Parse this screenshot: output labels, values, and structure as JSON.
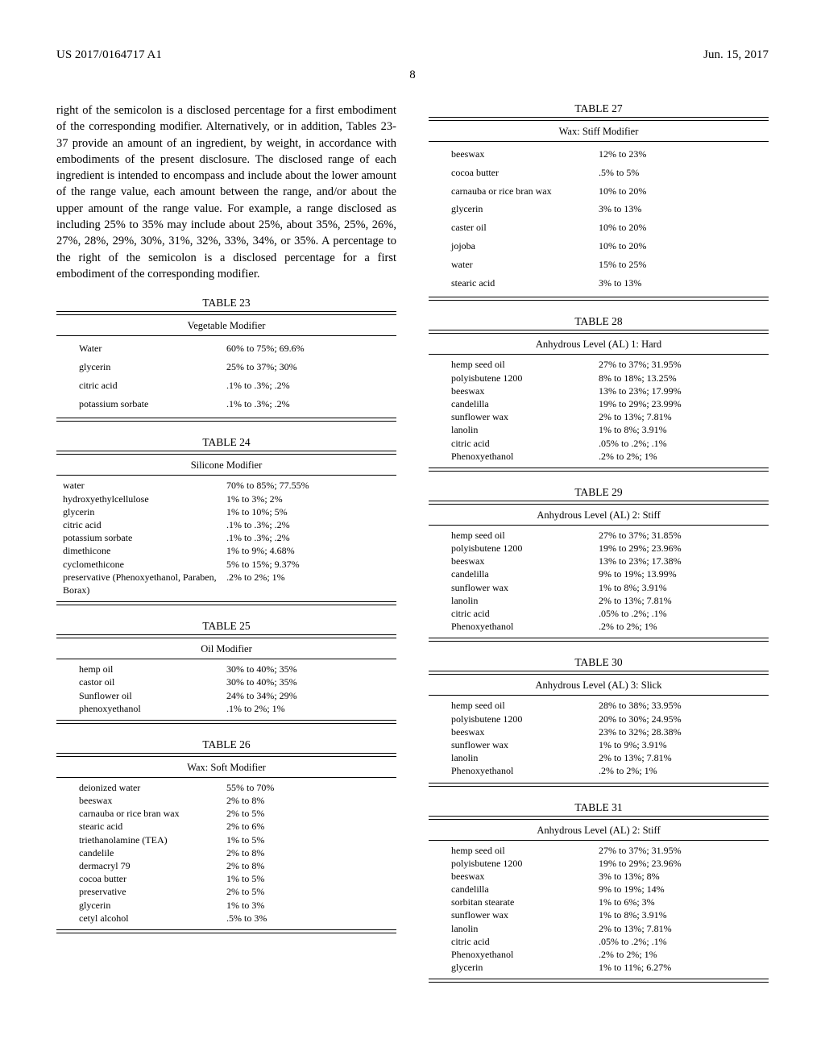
{
  "header": {
    "left": "US 2017/0164717 A1",
    "right": "Jun. 15, 2017"
  },
  "page_number": "8",
  "body_paragraph": "right of the semicolon is a disclosed percentage for a first embodiment of the corresponding modifier. Alternatively, or in addition, Tables 23-37 provide an amount of an ingredient, by weight, in accordance with embodiments of the present disclosure. The disclosed range of each ingredient is intended to encompass and include about the lower amount of the range value, each amount between the range, and/or about the upper amount of the range value. For example, a range disclosed as including 25% to 35% may include about 25%, about 35%, 25%, 26%, 27%, 28%, 29%, 30%, 31%, 32%, 33%, 34%, or 35%. A percentage to the right of the semicolon is a disclosed percentage for a first embodiment of the corresponding modifier.",
  "tables": {
    "t23": {
      "label": "TABLE 23",
      "title": "Vegetable Modifier",
      "spacious": true,
      "rows": [
        {
          "n": "Water",
          "v": "60% to 75%; 69.6%"
        },
        {
          "n": "glycerin",
          "v": "25% to 37%; 30%"
        },
        {
          "n": "citric acid",
          "v": ".1% to .3%; .2%"
        },
        {
          "n": "potassium sorbate",
          "v": ".1% to .3%; .2%"
        }
      ]
    },
    "t24": {
      "label": "TABLE 24",
      "title": "Silicone Modifier",
      "narrow": true,
      "rows": [
        {
          "n": "water",
          "v": "70% to 85%; 77.55%"
        },
        {
          "n": "hydroxyethylcellulose",
          "v": "1% to 3%; 2%"
        },
        {
          "n": "glycerin",
          "v": "1% to 10%; 5%"
        },
        {
          "n": "citric acid",
          "v": ".1% to .3%; .2%"
        },
        {
          "n": "potassium sorbate",
          "v": ".1% to .3%; .2%"
        },
        {
          "n": "dimethicone",
          "v": "1% to 9%; 4.68%"
        },
        {
          "n": "cyclomethicone",
          "v": "5% to 15%; 9.37%"
        },
        {
          "n": "preservative (Phenoxyethanol, Paraben, Borax)",
          "v": ".2% to 2%; 1%"
        }
      ]
    },
    "t25": {
      "label": "TABLE 25",
      "title": "Oil Modifier",
      "rows": [
        {
          "n": "hemp oil",
          "v": "30% to 40%; 35%"
        },
        {
          "n": "castor oil",
          "v": "30% to 40%; 35%"
        },
        {
          "n": "Sunflower oil",
          "v": "24% to 34%; 29%"
        },
        {
          "n": "phenoxyethanol",
          "v": ".1% to 2%; 1%"
        }
      ]
    },
    "t26": {
      "label": "TABLE 26",
      "title": "Wax: Soft Modifier",
      "rows": [
        {
          "n": "deionized water",
          "v": "55% to 70%"
        },
        {
          "n": "beeswax",
          "v": "2% to 8%"
        },
        {
          "n": "carnauba or rice bran wax",
          "v": "2% to 5%"
        },
        {
          "n": "stearic acid",
          "v": "2% to 6%"
        },
        {
          "n": "triethanolamine (TEA)",
          "v": "1% to 5%"
        },
        {
          "n": "candelile",
          "v": "2% to 8%"
        },
        {
          "n": "dermacryl 79",
          "v": "2% to 8%"
        },
        {
          "n": "cocoa butter",
          "v": "1% to 5%"
        },
        {
          "n": "preservative",
          "v": "2% to 5%"
        },
        {
          "n": "glycerin",
          "v": "1% to 3%"
        },
        {
          "n": "cetyl alcohol",
          "v": ".5% to 3%"
        }
      ]
    },
    "t27": {
      "label": "TABLE 27",
      "title": "Wax: Stiff Modifier",
      "spacious": true,
      "rows": [
        {
          "n": "beeswax",
          "v": "12% to 23%"
        },
        {
          "n": "cocoa butter",
          "v": ".5% to 5%"
        },
        {
          "n": "carnauba or rice bran wax",
          "v": "10% to 20%"
        },
        {
          "n": "glycerin",
          "v": "3% to 13%"
        },
        {
          "n": "caster oil",
          "v": "10% to 20%"
        },
        {
          "n": "jojoba",
          "v": "10% to 20%"
        },
        {
          "n": "water",
          "v": "15% to 25%"
        },
        {
          "n": "stearic acid",
          "v": "3% to 13%"
        }
      ]
    },
    "t28": {
      "label": "TABLE 28",
      "title": "Anhydrous Level (AL) 1: Hard",
      "rows": [
        {
          "n": "hemp seed oil",
          "v": "27% to 37%; 31.95%"
        },
        {
          "n": "polyisbutene 1200",
          "v": "8% to 18%; 13.25%"
        },
        {
          "n": "beeswax",
          "v": "13% to 23%; 17.99%"
        },
        {
          "n": "candelilla",
          "v": "19% to 29%; 23.99%"
        },
        {
          "n": "sunflower wax",
          "v": "2% to 13%; 7.81%"
        },
        {
          "n": "lanolin",
          "v": "1% to 8%; 3.91%"
        },
        {
          "n": "citric acid",
          "v": ".05% to .2%; .1%"
        },
        {
          "n": "Phenoxyethanol",
          "v": ".2% to 2%; 1%"
        }
      ]
    },
    "t29": {
      "label": "TABLE 29",
      "title": "Anhydrous Level (AL) 2: Stiff",
      "rows": [
        {
          "n": "hemp seed oil",
          "v": "27% to 37%; 31.85%"
        },
        {
          "n": "polyisbutene 1200",
          "v": "19% to 29%; 23.96%"
        },
        {
          "n": "beeswax",
          "v": "13% to 23%; 17.38%"
        },
        {
          "n": "candelilla",
          "v": "9% to 19%; 13.99%"
        },
        {
          "n": "sunflower wax",
          "v": "1% to 8%; 3.91%"
        },
        {
          "n": "lanolin",
          "v": "2% to 13%; 7.81%"
        },
        {
          "n": "citric acid",
          "v": ".05% to .2%; .1%"
        },
        {
          "n": "Phenoxyethanol",
          "v": ".2% to 2%; 1%"
        }
      ]
    },
    "t30": {
      "label": "TABLE 30",
      "title": "Anhydrous Level (AL) 3: Slick",
      "rows": [
        {
          "n": "hemp seed oil",
          "v": "28% to 38%; 33.95%"
        },
        {
          "n": "polyisbutene 1200",
          "v": "20% to 30%; 24.95%"
        },
        {
          "n": "beeswax",
          "v": "23% to 32%; 28.38%"
        },
        {
          "n": "sunflower wax",
          "v": "1% to 9%; 3.91%"
        },
        {
          "n": "lanolin",
          "v": "2% to 13%; 7.81%"
        },
        {
          "n": "Phenoxyethanol",
          "v": ".2% to 2%; 1%"
        }
      ]
    },
    "t31": {
      "label": "TABLE 31",
      "title": "Anhydrous Level (AL) 2: Stiff",
      "rows": [
        {
          "n": "hemp seed oil",
          "v": "27% to 37%; 31.95%"
        },
        {
          "n": "polyisbutene 1200",
          "v": "19% to 29%; 23.96%"
        },
        {
          "n": "beeswax",
          "v": "3% to 13%; 8%"
        },
        {
          "n": "candelilla",
          "v": "9% to 19%; 14%"
        },
        {
          "n": "sorbitan stearate",
          "v": "1% to 6%; 3%"
        },
        {
          "n": "sunflower wax",
          "v": "1% to 8%; 3.91%"
        },
        {
          "n": "lanolin",
          "v": "2% to 13%; 7.81%"
        },
        {
          "n": "citric acid",
          "v": ".05% to .2%; .1%"
        },
        {
          "n": "Phenoxyethanol",
          "v": ".2% to 2%; 1%"
        },
        {
          "n": "glycerin",
          "v": "1% to 11%; 6.27%"
        }
      ]
    }
  }
}
